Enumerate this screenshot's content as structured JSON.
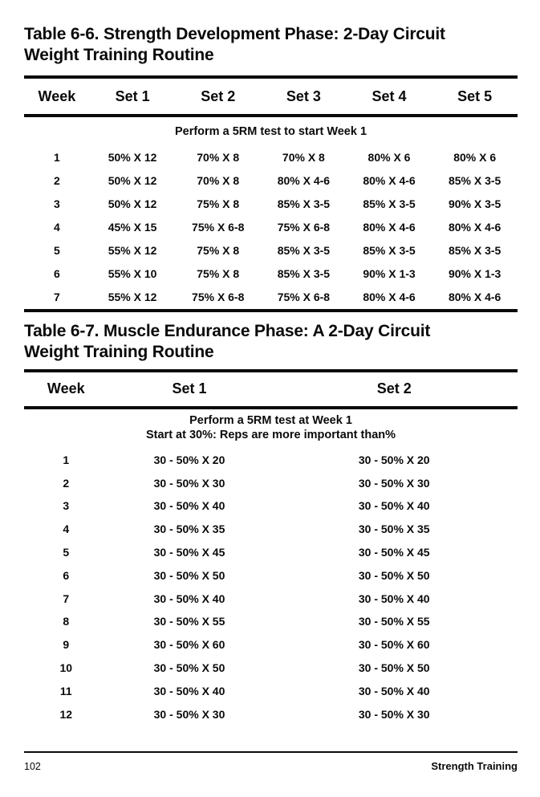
{
  "table1": {
    "title_lines": [
      "Table 6-6. Strength Development Phase: 2-Day Circuit",
      "Weight Training Routine"
    ],
    "columns": [
      "Week",
      "Set 1",
      "Set 2",
      "Set 3",
      "Set 4",
      "Set 5"
    ],
    "note": "Perform a 5RM test to start Week 1",
    "rows": [
      [
        "1",
        "50% X 12",
        "70% X 8",
        "70% X 8",
        "80% X 6",
        "80% X 6"
      ],
      [
        "2",
        "50% X 12",
        "70% X 8",
        "80% X 4-6",
        "80% X 4-6",
        "85% X 3-5"
      ],
      [
        "3",
        "50% X 12",
        "75% X 8",
        "85% X 3-5",
        "85% X 3-5",
        "90% X 3-5"
      ],
      [
        "4",
        "45% X 15",
        "75% X 6-8",
        "75% X 6-8",
        "80% X 4-6",
        "80% X 4-6"
      ],
      [
        "5",
        "55% X 12",
        "75% X 8",
        "85% X 3-5",
        "85% X 3-5",
        "85% X 3-5"
      ],
      [
        "6",
        "55% X 10",
        "75% X 8",
        "85% X 3-5",
        "90% X 1-3",
        "90% X 1-3"
      ],
      [
        "7",
        "55% X 12",
        "75% X 6-8",
        "75% X 6-8",
        "80% X 4-6",
        "80% X 4-6"
      ]
    ]
  },
  "table2": {
    "title_lines": [
      "Table 6-7. Muscle Endurance Phase: A 2-Day Circuit",
      "Weight Training Routine"
    ],
    "columns": [
      "Week",
      "Set 1",
      "Set 2"
    ],
    "note_lines": [
      "Perform a 5RM test at Week 1",
      "Start at 30%: Reps are more important than%"
    ],
    "rows": [
      [
        "1",
        "30 - 50% X 20",
        "30 - 50% X 20"
      ],
      [
        "2",
        "30 - 50% X 30",
        "30 - 50% X 30"
      ],
      [
        "3",
        "30 - 50% X 40",
        "30 - 50% X 40"
      ],
      [
        "4",
        "30 - 50% X 35",
        "30 - 50% X 35"
      ],
      [
        "5",
        "30 - 50% X 45",
        "30 - 50% X 45"
      ],
      [
        "6",
        "30 - 50% X 50",
        "30 - 50% X 50"
      ],
      [
        "7",
        "30 - 50% X 40",
        "30 - 50% X 40"
      ],
      [
        "8",
        "30 - 50% X 55",
        "30 - 50% X 55"
      ],
      [
        "9",
        "30 - 50% X 60",
        "30 - 50% X 60"
      ],
      [
        "10",
        "30 - 50% X 50",
        "30 - 50% X 50"
      ],
      [
        "11",
        "30 - 50% X 40",
        "30 - 50% X 40"
      ],
      [
        "12",
        "30 - 50% X 30",
        "30 - 50% X 30"
      ]
    ]
  },
  "footer": {
    "page_number": "102",
    "section": "Strength Training"
  },
  "colors": {
    "ink": "#0a0a0a",
    "paper": "#ffffff"
  }
}
